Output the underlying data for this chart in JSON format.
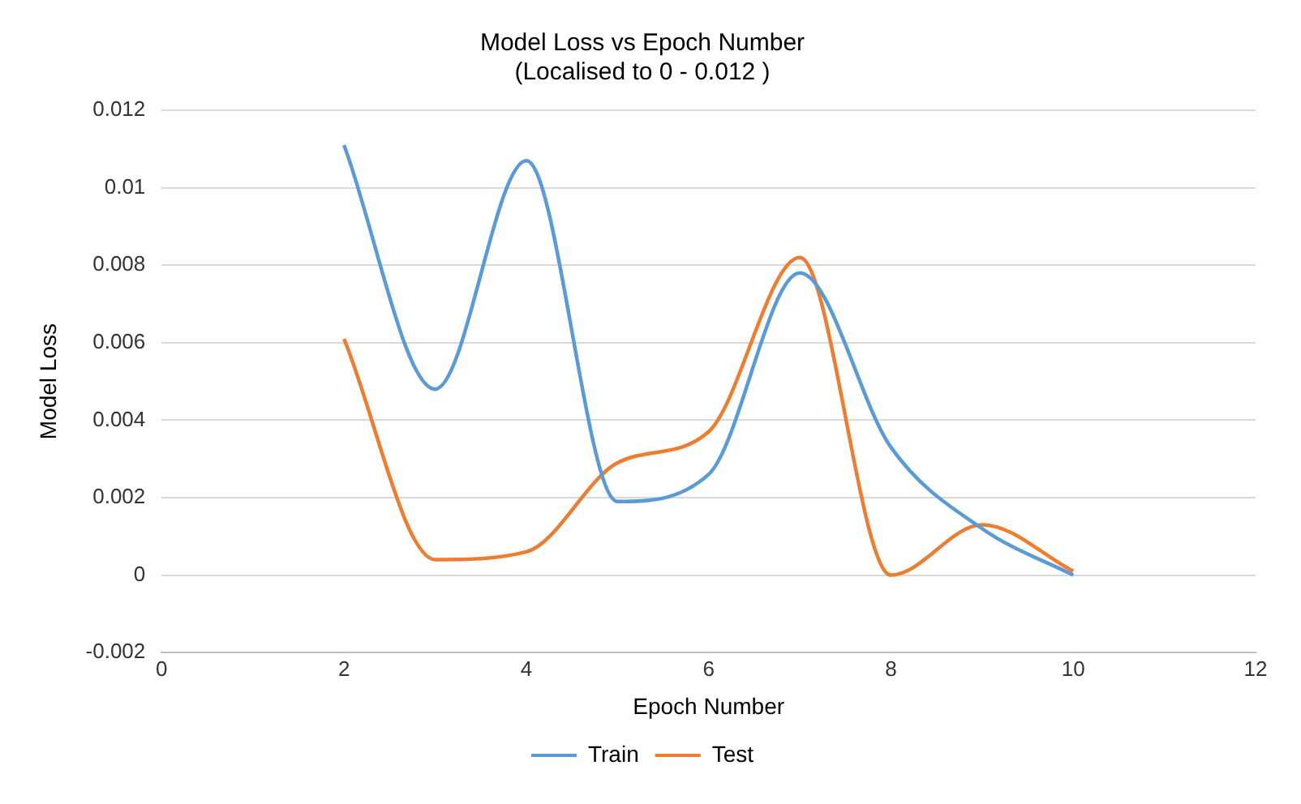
{
  "chart_data": {
    "type": "line",
    "title": [
      "Model Loss vs Epoch Number",
      "(Localised to 0 - 0.012 )"
    ],
    "xlabel": "Epoch Number",
    "ylabel": "Model Loss",
    "x": [
      2,
      3,
      4,
      5,
      6,
      7,
      8,
      9,
      10
    ],
    "series": [
      {
        "name": "Train",
        "color": "#5b9bd5",
        "values": [
          0.0111,
          0.0048,
          0.0107,
          0.0019,
          0.0026,
          0.0078,
          0.0033,
          0.0012,
          0
        ]
      },
      {
        "name": "Test",
        "color": "#ed7d31",
        "values": [
          0.0061,
          0.0004,
          0.0006,
          0.0029,
          0.0037,
          0.0082,
          0,
          0.0013,
          0.0001
        ]
      }
    ],
    "xlim": [
      0,
      12
    ],
    "xticks": [
      0,
      2,
      4,
      6,
      8,
      10,
      12
    ],
    "ylim": [
      -0.002,
      0.012
    ],
    "yticks": [
      -0.002,
      0,
      0.002,
      0.004,
      0.006,
      0.008,
      0.01,
      0.012
    ],
    "grid": "y",
    "legend": "bottom",
    "marker": "none",
    "line_style": "solid"
  }
}
